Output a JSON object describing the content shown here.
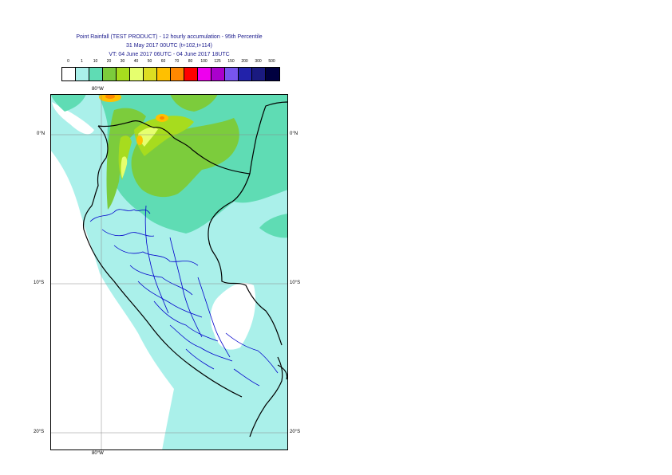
{
  "title": {
    "line1": "Point Rainfall (TEST PRODUCT) - 12 hourly accumulation - 95th Percentile",
    "line2": "31 May 2017 00UTC (t+102,t+114)",
    "line3": "VT: 04 June 2017 06UTC - 04 June 2017 18UTC"
  },
  "legend": {
    "ticks": [
      "0",
      "1",
      "10",
      "20",
      "30",
      "40",
      "50",
      "60",
      "70",
      "80",
      "100",
      "125",
      "150",
      "200",
      "300",
      "500"
    ],
    "colors": [
      "#ffffff",
      "#aaf0ea",
      "#5fdcb4",
      "#7ccc3c",
      "#a7dc1e",
      "#e6ff6e",
      "#dddd22",
      "#ffc000",
      "#ff8800",
      "#ff0000",
      "#ee00ee",
      "#aa00cc",
      "#7755ee",
      "#2222aa",
      "#1a1a80",
      "#000040"
    ]
  },
  "map": {
    "lon_top": "80°W",
    "lon_bottom": "80°W",
    "lat_labels": [
      "0°N",
      "10°S",
      "20°S"
    ],
    "colors": {
      "background": "#aaf0ea",
      "dry": "#ffffff",
      "light": "#5fdcb4",
      "moderate": "#7ccc3c",
      "heavy": "#a7dc1e",
      "very_heavy": "#e6ff6e",
      "extreme": "#ffc000",
      "peak": "#ff8800",
      "border": "#000000",
      "admin": "#0000cc",
      "grid": "#888888"
    }
  }
}
